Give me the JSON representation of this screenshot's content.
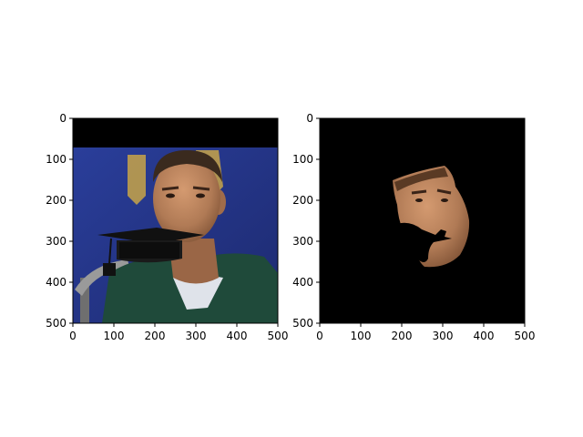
{
  "chart_data": [
    {
      "type": "image",
      "title": "",
      "xlabel": "",
      "ylabel": "",
      "xlim": [
        0,
        500
      ],
      "ylim": [
        500,
        0
      ],
      "xticks": [
        0,
        100,
        200,
        300,
        400,
        500
      ],
      "yticks": [
        0,
        100,
        200,
        300,
        400,
        500
      ],
      "image": {
        "description_free": true,
        "content": "photo",
        "black_band_y": [
          0,
          70
        ],
        "photo_y": [
          70,
          500
        ],
        "background_color": "#2b3a8f",
        "shirt_color": "#1f4a3a",
        "skin_color": "#b07a55",
        "overlay_icon": "graduation-cap-icon",
        "cap_color": "#111111"
      }
    },
    {
      "type": "image",
      "title": "",
      "xlabel": "",
      "ylabel": "",
      "xlim": [
        0,
        500
      ],
      "ylim": [
        500,
        0
      ],
      "xticks": [
        0,
        100,
        200,
        300,
        400,
        500
      ],
      "yticks": [
        0,
        100,
        200,
        300,
        400,
        500
      ],
      "image": {
        "content": "masked-face",
        "background_color": "#000000",
        "skin_color": "#b07a55"
      }
    }
  ]
}
